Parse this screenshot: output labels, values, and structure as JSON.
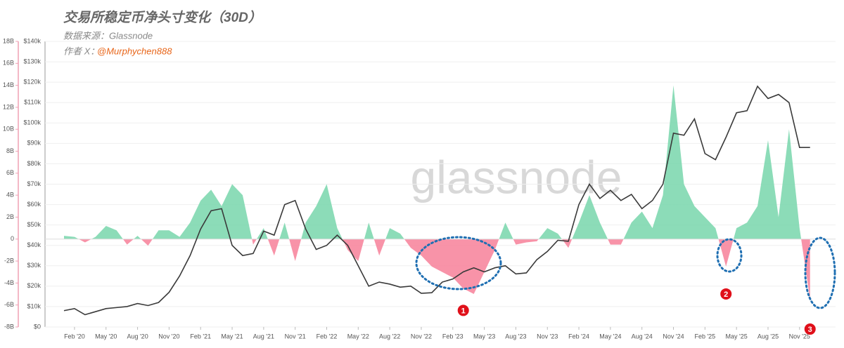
{
  "chart_data": {
    "type": "area-line",
    "title": "交易所稳定币净头寸变化（30D）",
    "subtitle": "数据来源：Glassnode",
    "author_prefix": "作者 X：",
    "author": "@Murphychen888",
    "watermark": "glassnode",
    "categories": [
      null,
      "Feb '20",
      null,
      null,
      "May '20",
      null,
      null,
      "Aug '20",
      null,
      null,
      "Nov '20",
      null,
      null,
      "Feb '21",
      null,
      null,
      "May '21",
      null,
      null,
      "Aug '21",
      null,
      null,
      "Nov '21",
      null,
      null,
      "Feb '22",
      null,
      null,
      "May '22",
      null,
      null,
      "Aug '22",
      null,
      null,
      "Nov '22",
      null,
      null,
      "Feb '23",
      null,
      null,
      "May '23",
      null,
      null,
      "Aug '23",
      null,
      null,
      "Nov '23",
      null,
      null,
      "Feb '24",
      null,
      null,
      "May '24",
      null,
      null,
      "Aug '24",
      null,
      null,
      "Nov '24",
      null,
      null,
      "Feb '25",
      null,
      null,
      "May '25",
      null,
      null,
      "Aug '25",
      null,
      null,
      "Nov '25",
      null
    ],
    "series": [
      {
        "color": "#7fd8b0",
        "neg_color": "#f7879f",
        "values": [
          0.3,
          0.2,
          -0.3,
          0.2,
          1.2,
          0.8,
          -0.5,
          0.3,
          -0.6,
          0.8,
          0.8,
          0.2,
          1.5,
          3.5,
          4.5,
          3,
          5,
          4,
          -0.5,
          1,
          -1.5,
          1.5,
          -2,
          1.5,
          3,
          5,
          1,
          -1,
          -2,
          1.5,
          -1.5,
          1,
          0.5,
          -0.8,
          -1.5,
          -2.5,
          -3,
          -3.5,
          -4.5,
          -5,
          -3,
          -1,
          1.5,
          -0.5,
          -0.3,
          -0.2,
          1,
          0.5,
          -0.8,
          1.5,
          4,
          1.5,
          -0.5,
          -0.5,
          1.5,
          2.5,
          1,
          4,
          14,
          5,
          3,
          2,
          1,
          -2.5,
          1,
          1.5,
          3,
          9,
          2,
          10,
          1,
          -5.5
        ]
      },
      {
        "color": "#3a3a3a",
        "axis": "y2",
        "values": [
          8000,
          9000,
          6000,
          7500,
          9000,
          9500,
          10000,
          11500,
          10500,
          12000,
          17000,
          25000,
          35000,
          48000,
          57000,
          58000,
          40000,
          35000,
          36000,
          47000,
          45000,
          60000,
          62000,
          48000,
          38000,
          40000,
          45000,
          40000,
          30000,
          20000,
          22000,
          21000,
          19500,
          20000,
          16500,
          16800,
          22000,
          23500,
          27000,
          29000,
          27000,
          29000,
          30000,
          26000,
          26500,
          33000,
          37000,
          42500,
          42000,
          60000,
          70000,
          63000,
          67000,
          62000,
          65000,
          58000,
          62000,
          70000,
          95000,
          94000,
          102000,
          85000,
          82000,
          93000,
          105000,
          106000,
          118000,
          112000,
          114000,
          110000,
          88000,
          88000
        ]
      }
    ],
    "ylim": [
      -8,
      18
    ],
    "yticks": [
      {
        "value": -8,
        "label": "-8B"
      },
      {
        "value": -6,
        "label": "-6B"
      },
      {
        "value": -4,
        "label": "-4B"
      },
      {
        "value": -2,
        "label": "-2B"
      },
      0,
      {
        "value": 2,
        "label": "2B"
      },
      {
        "value": 4,
        "label": "4B"
      },
      {
        "value": 6,
        "label": "6B"
      },
      {
        "value": 8,
        "label": "8B"
      },
      {
        "value": 10,
        "label": "10B"
      },
      {
        "value": 12,
        "label": "12B"
      },
      {
        "value": 14,
        "label": "14B"
      },
      {
        "value": 16,
        "label": "16B"
      },
      {
        "value": 18,
        "label": "18B"
      }
    ],
    "y2lim": [
      0,
      140000
    ],
    "y2ticks": [
      {
        "value": 0,
        "label": "$0"
      },
      {
        "value": 10000,
        "label": "$10k"
      },
      {
        "value": 20000,
        "label": "$20k"
      },
      {
        "value": 30000,
        "label": "$30k"
      },
      {
        "value": 40000,
        "label": "$40k"
      },
      {
        "value": 50000,
        "label": "$50k"
      },
      {
        "value": 60000,
        "label": "$60k"
      },
      {
        "value": 70000,
        "label": "$70k"
      },
      {
        "value": 80000,
        "label": "$80k"
      },
      {
        "value": 90000,
        "label": "$90k"
      },
      {
        "value": 100000,
        "label": "$100k"
      },
      {
        "value": 110000,
        "label": "$110k"
      },
      {
        "value": 120000,
        "label": "$120k"
      },
      {
        "value": 130000,
        "label": "$130k"
      },
      {
        "value": 140000,
        "label": "$140k"
      }
    ],
    "grid": true,
    "annotations": [
      {
        "label": "1",
        "index": 38,
        "value": -5.6
      },
      {
        "label": "2",
        "index": 63,
        "value": -4.1
      },
      {
        "label": "3",
        "index": 71,
        "value": -7.3
      }
    ]
  }
}
